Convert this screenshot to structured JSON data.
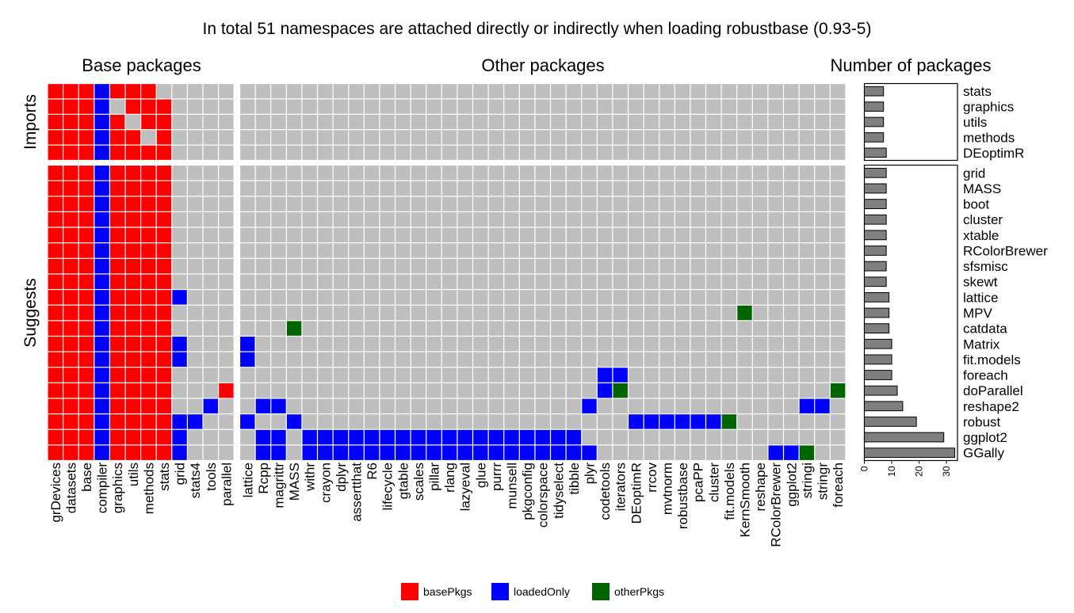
{
  "chart_data": {
    "type": "heatmap",
    "title": "In total 51 namespaces are attached directly or indirectly when loading robustbase (0.93-5)",
    "panel_titles": [
      "Base packages",
      "Other packages",
      "Number of packages"
    ],
    "row_groups": [
      {
        "name": "Imports",
        "rows": [
          "stats",
          "graphics",
          "utils",
          "methods",
          "DEoptimR"
        ]
      },
      {
        "name": "Suggests",
        "rows": [
          "grid",
          "MASS",
          "boot",
          "cluster",
          "xtable",
          "RColorBrewer",
          "sfsmisc",
          "skewt",
          "lattice",
          "MPV",
          "catdata",
          "Matrix",
          "fit.models",
          "foreach",
          "doParallel",
          "reshape2",
          "robust",
          "ggplot2",
          "GGally"
        ]
      }
    ],
    "base_columns": [
      "grDevices",
      "datasets",
      "base",
      "compiler",
      "graphics",
      "utils",
      "methods",
      "stats",
      "grid",
      "stats4",
      "tools",
      "parallel"
    ],
    "other_columns": [
      "lattice",
      "Rcpp",
      "magrittr",
      "MASS",
      "withr",
      "crayon",
      "dplyr",
      "assertthat",
      "R6",
      "lifecycle",
      "gtable",
      "scales",
      "pillar",
      "rlang",
      "lazyeval",
      "glue",
      "purrr",
      "munsell",
      "pkgconfig",
      "colorspace",
      "tidyselect",
      "tibble",
      "plyr",
      "codetools",
      "iterators",
      "DEoptimR",
      "rrcov",
      "mvtnorm",
      "robustbase",
      "pcaPP",
      "cluster",
      "fit.models",
      "KernSmooth",
      "reshape",
      "RColorBrewer",
      "ggplot2",
      "stringi",
      "stringr",
      "foreach"
    ],
    "legend": {
      "position": "bottom",
      "entries": [
        {
          "key": "basePkgs",
          "label": "basePkgs",
          "color": "#ff0000"
        },
        {
          "key": "loadedOnly",
          "label": "loadedOnly",
          "color": "#0000ff"
        },
        {
          "key": "otherPkgs",
          "label": "otherPkgs",
          "color": "#006400"
        }
      ],
      "empty_color": "#bebebe"
    },
    "cells": {
      "stats": {
        "base": "BBBLBBB.....",
        "other": ""
      },
      "graphics": {
        "base": "BBBL.BBB....",
        "other": ""
      },
      "utils": {
        "base": "BBBLB.BB....",
        "other": ""
      },
      "methods": {
        "base": "BBBLBB.B....",
        "other": ""
      },
      "DEoptimR": {
        "base": "BBBLBBBB....",
        "other": ""
      },
      "grid": {
        "base": "BBBLBBBB....",
        "other": ""
      },
      "MASS": {
        "base": "BBBLBBBB....",
        "other": ""
      },
      "boot": {
        "base": "BBBLBBBB....",
        "other": ""
      },
      "cluster": {
        "base": "BBBLBBBB....",
        "other": ""
      },
      "xtable": {
        "base": "BBBLBBBB....",
        "other": ""
      },
      "RColorBrewer": {
        "base": "BBBLBBBB....",
        "other": ""
      },
      "sfsmisc": {
        "base": "BBBLBBBB....",
        "other": ""
      },
      "skewt": {
        "base": "BBBLBBBB....",
        "other": ""
      },
      "lattice": {
        "base": "BBBLBBBBL...",
        "other": ""
      },
      "MPV": {
        "base": "BBBLBBBB....",
        "other": "................................O"
      },
      "catdata": {
        "base": "BBBLBBBB....",
        "other": "...O"
      },
      "Matrix": {
        "base": "BBBLBBBBL...",
        "other": "L"
      },
      "fit.models": {
        "base": "BBBLBBBBL...",
        "other": "L"
      },
      "foreach": {
        "base": "BBBLBBBB....",
        "other": ".......................LL"
      },
      "doParallel": {
        "base": "BBBLBBBB...B",
        "other": ".......................LO.............O"
      },
      "reshape2": {
        "base": "BBBLBBBB..L.",
        "other": ".LL...................L.............LL"
      },
      "robust": {
        "base": "BBBLBBBBLL..",
        "other": "L..L.....................LLLLLLO"
      },
      "ggplot2": {
        "base": "BBBLBBBBL...",
        "other": ".LL.LLLLLLLLLLLLLLLLLL"
      },
      "GGally": {
        "base": "BBBLBBBBL...",
        "other": ".LL.LLLLLLLLLLLLLLLLLLL...........LLO"
      }
    },
    "bar": {
      "xlim": [
        0,
        34
      ],
      "ticks": [
        0,
        10,
        20,
        30
      ],
      "values": {
        "stats": 7,
        "graphics": 7,
        "utils": 7,
        "methods": 7,
        "DEoptimR": 8,
        "grid": 8,
        "MASS": 8,
        "boot": 8,
        "cluster": 8,
        "xtable": 8,
        "RColorBrewer": 8,
        "sfsmisc": 8,
        "skewt": 8,
        "lattice": 9,
        "MPV": 9,
        "catdata": 9,
        "Matrix": 10,
        "fit.models": 10,
        "foreach": 10,
        "doParallel": 12,
        "reshape2": 14,
        "robust": 19,
        "ggplot2": 29,
        "GGally": 33
      },
      "fill": "#7f7f7f"
    }
  }
}
